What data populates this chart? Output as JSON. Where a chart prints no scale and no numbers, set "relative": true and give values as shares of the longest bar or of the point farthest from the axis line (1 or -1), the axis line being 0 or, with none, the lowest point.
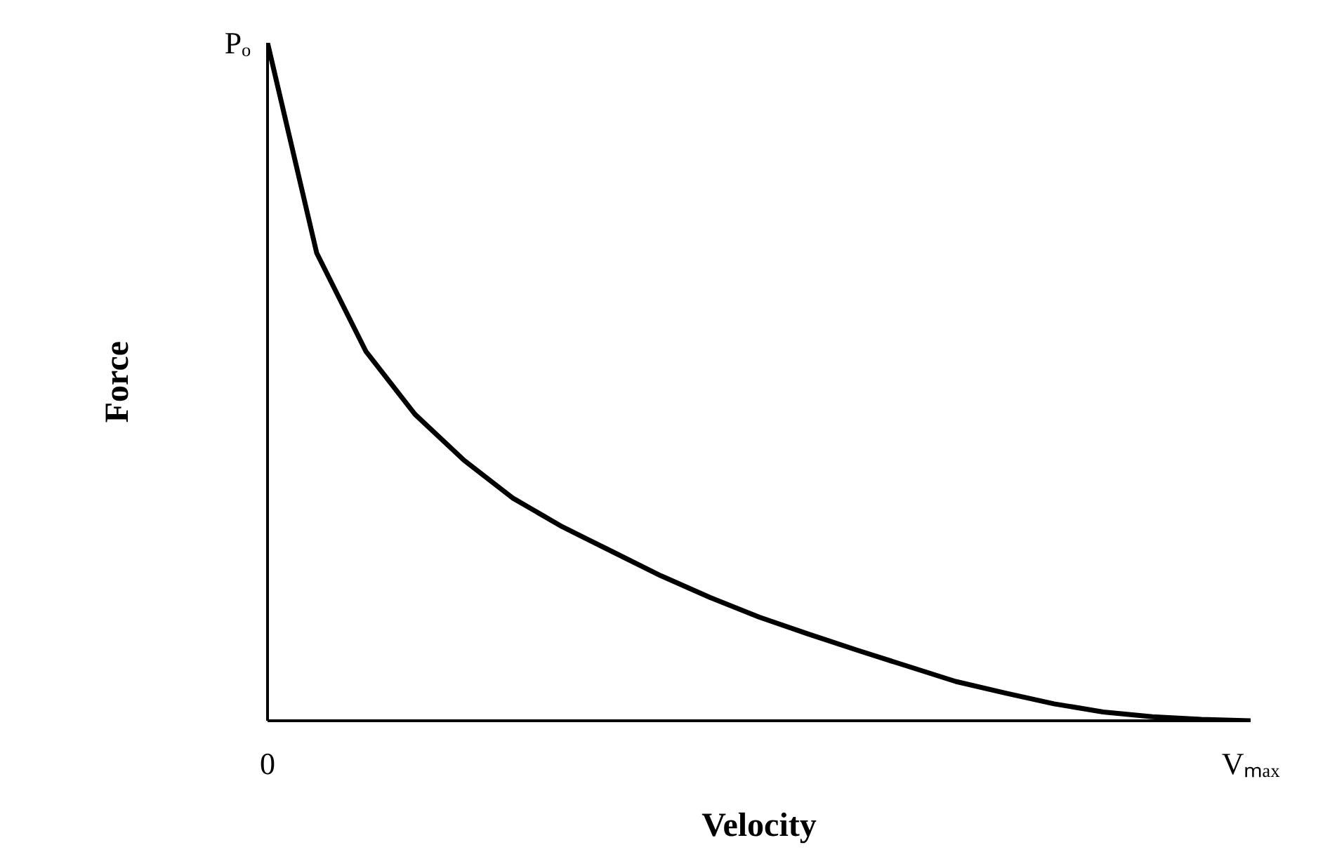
{
  "chart_data": {
    "type": "line",
    "relative": true,
    "xlabel": "Velocity",
    "ylabel": "Force",
    "categories": [
      null,
      null,
      null,
      null,
      null,
      null,
      null,
      null,
      null,
      null,
      null,
      null,
      null,
      null,
      null,
      null,
      null,
      null,
      null,
      null,
      null
    ],
    "series": [
      {
        "color": "#000000",
        "values": [
          1,
          0.69,
          0.545,
          0.452,
          0.384,
          0.328,
          0.286,
          0.25,
          0.214,
          0.182,
          0.153,
          0.128,
          0.104,
          0.081,
          0.058,
          0.041,
          0.025,
          0.013,
          0.006,
          0.002,
          0
        ]
      }
    ],
    "annotations": [
      "Pₒ",
      "0",
      "Vₘₐₓ"
    ],
    "grid": false,
    "marker": "none",
    "line_style": "solid"
  }
}
